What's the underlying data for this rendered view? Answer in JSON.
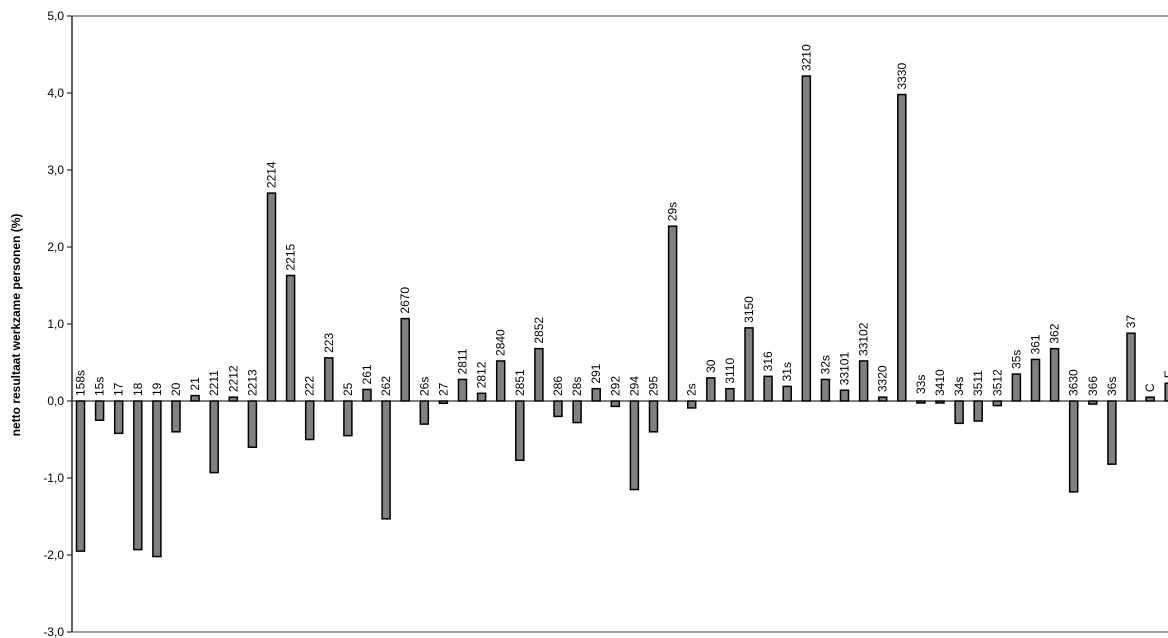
{
  "chart_data": {
    "type": "bar",
    "title": "",
    "xlabel": "",
    "ylabel": "netto resultaat werkzame personen  (%)",
    "ylim": [
      -3.0,
      5.0
    ],
    "yticks": [
      5.0,
      4.0,
      3.0,
      2.0,
      1.0,
      0.0,
      -1.0,
      -2.0,
      -3.0
    ],
    "ytick_labels": [
      "5,0",
      "4,0",
      "3,0",
      "2,0",
      "1,0",
      "0,0",
      "-1,0",
      "-2,0",
      "-3,0"
    ],
    "grid": false,
    "legend": "none",
    "bar_color": "#808080",
    "bar_edge_color": "#000000",
    "categories": [
      "158s",
      "15s",
      "17",
      "18",
      "19",
      "20",
      "21",
      "2211",
      "2212",
      "2213",
      "2214",
      "2215",
      "222",
      "223",
      "25",
      "261",
      "262",
      "2670",
      "26s",
      "27",
      "2811",
      "2812",
      "2840",
      "2851",
      "2852",
      "286",
      "28s",
      "291",
      "292",
      "294",
      "295",
      "29s",
      "2s",
      "30",
      "3110",
      "3150",
      "316",
      "31s",
      "3210",
      "32s",
      "33101",
      "33102",
      "3320",
      "3330",
      "33s",
      "3410",
      "34s",
      "3511",
      "3512",
      "35s",
      "361",
      "362",
      "3630",
      "366",
      "36s",
      "37",
      "C",
      "E"
    ],
    "values": [
      -1.95,
      -0.25,
      -0.42,
      -1.93,
      -2.02,
      -0.4,
      0.07,
      -0.93,
      0.05,
      -0.6,
      2.7,
      1.63,
      -0.5,
      0.56,
      -0.45,
      0.15,
      -1.53,
      1.07,
      -0.3,
      -0.03,
      0.28,
      0.1,
      0.52,
      -0.77,
      0.68,
      -0.2,
      -0.28,
      0.16,
      -0.07,
      -1.15,
      -0.4,
      2.27,
      -0.09,
      0.3,
      0.16,
      0.95,
      0.32,
      0.19,
      4.22,
      0.28,
      0.14,
      0.52,
      0.05,
      3.98,
      0.0,
      -0.02,
      -0.29,
      -0.26,
      -0.06,
      0.35,
      0.54,
      0.68,
      -1.18,
      -0.04,
      -0.82,
      0.88,
      0.05,
      0.23
    ]
  }
}
